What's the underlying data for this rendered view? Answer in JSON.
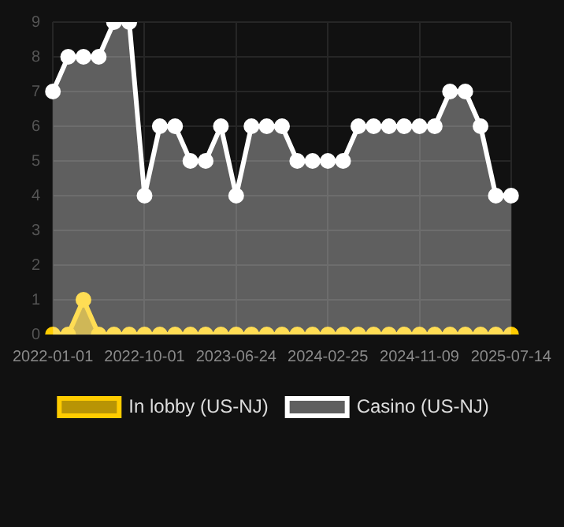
{
  "chart_data": {
    "type": "area",
    "categories": [
      "2022-01-01",
      null,
      null,
      null,
      null,
      null,
      "2022-10-01",
      null,
      null,
      null,
      null,
      null,
      "2023-06-24",
      null,
      null,
      null,
      null,
      null,
      "2024-02-25",
      null,
      null,
      null,
      null,
      null,
      "2024-11-09",
      null,
      null,
      null,
      null,
      null,
      "2025-07-14"
    ],
    "series": [
      {
        "name": "In lobby (US-NJ)",
        "color": "#ffcc00",
        "values": [
          0,
          0,
          1,
          0,
          0,
          0,
          0,
          0,
          0,
          0,
          0,
          0,
          0,
          0,
          0,
          0,
          0,
          0,
          0,
          0,
          0,
          0,
          0,
          0,
          0,
          0,
          0,
          0,
          0,
          0,
          0
        ]
      },
      {
        "name": "Casino (US-NJ)",
        "color": "#ffffff",
        "values": [
          7,
          8,
          8,
          8,
          9,
          9,
          4,
          6,
          6,
          5,
          5,
          6,
          4,
          6,
          6,
          6,
          5,
          5,
          5,
          5,
          6,
          6,
          6,
          6,
          6,
          6,
          7,
          7,
          6,
          4,
          4
        ]
      }
    ],
    "ylim": [
      0,
      9
    ],
    "yticks": [
      0,
      1,
      2,
      3,
      4,
      5,
      6,
      7,
      8,
      9
    ],
    "grid": true,
    "legend": "bottom",
    "marker": "circle",
    "line_style": "solid"
  }
}
